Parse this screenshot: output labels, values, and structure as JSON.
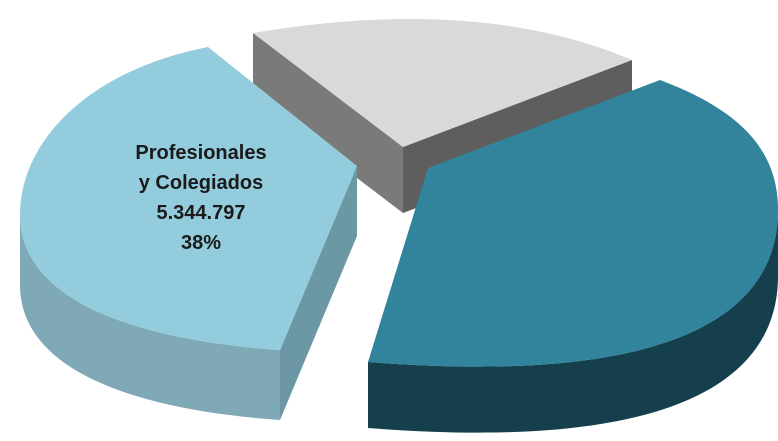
{
  "chart_data": {
    "type": "pie",
    "style": "3d-exploded",
    "slices": [
      {
        "id": "grey",
        "share": 0.21,
        "color": "#d9d9d9",
        "side_color": "#6e6e6e"
      },
      {
        "id": "dark-teal",
        "share": 0.41,
        "color": "#31849b",
        "side_color": "#174a59"
      },
      {
        "id": "light-blue",
        "share": 0.38,
        "color": "#93cddd",
        "side_color": "#6f9dab"
      }
    ],
    "labels": [
      {
        "slice": "light-blue",
        "name_line1": "Profesionales",
        "name_line2": "y Colegiados",
        "value": "5.344.797",
        "percent": "38%"
      }
    ]
  }
}
